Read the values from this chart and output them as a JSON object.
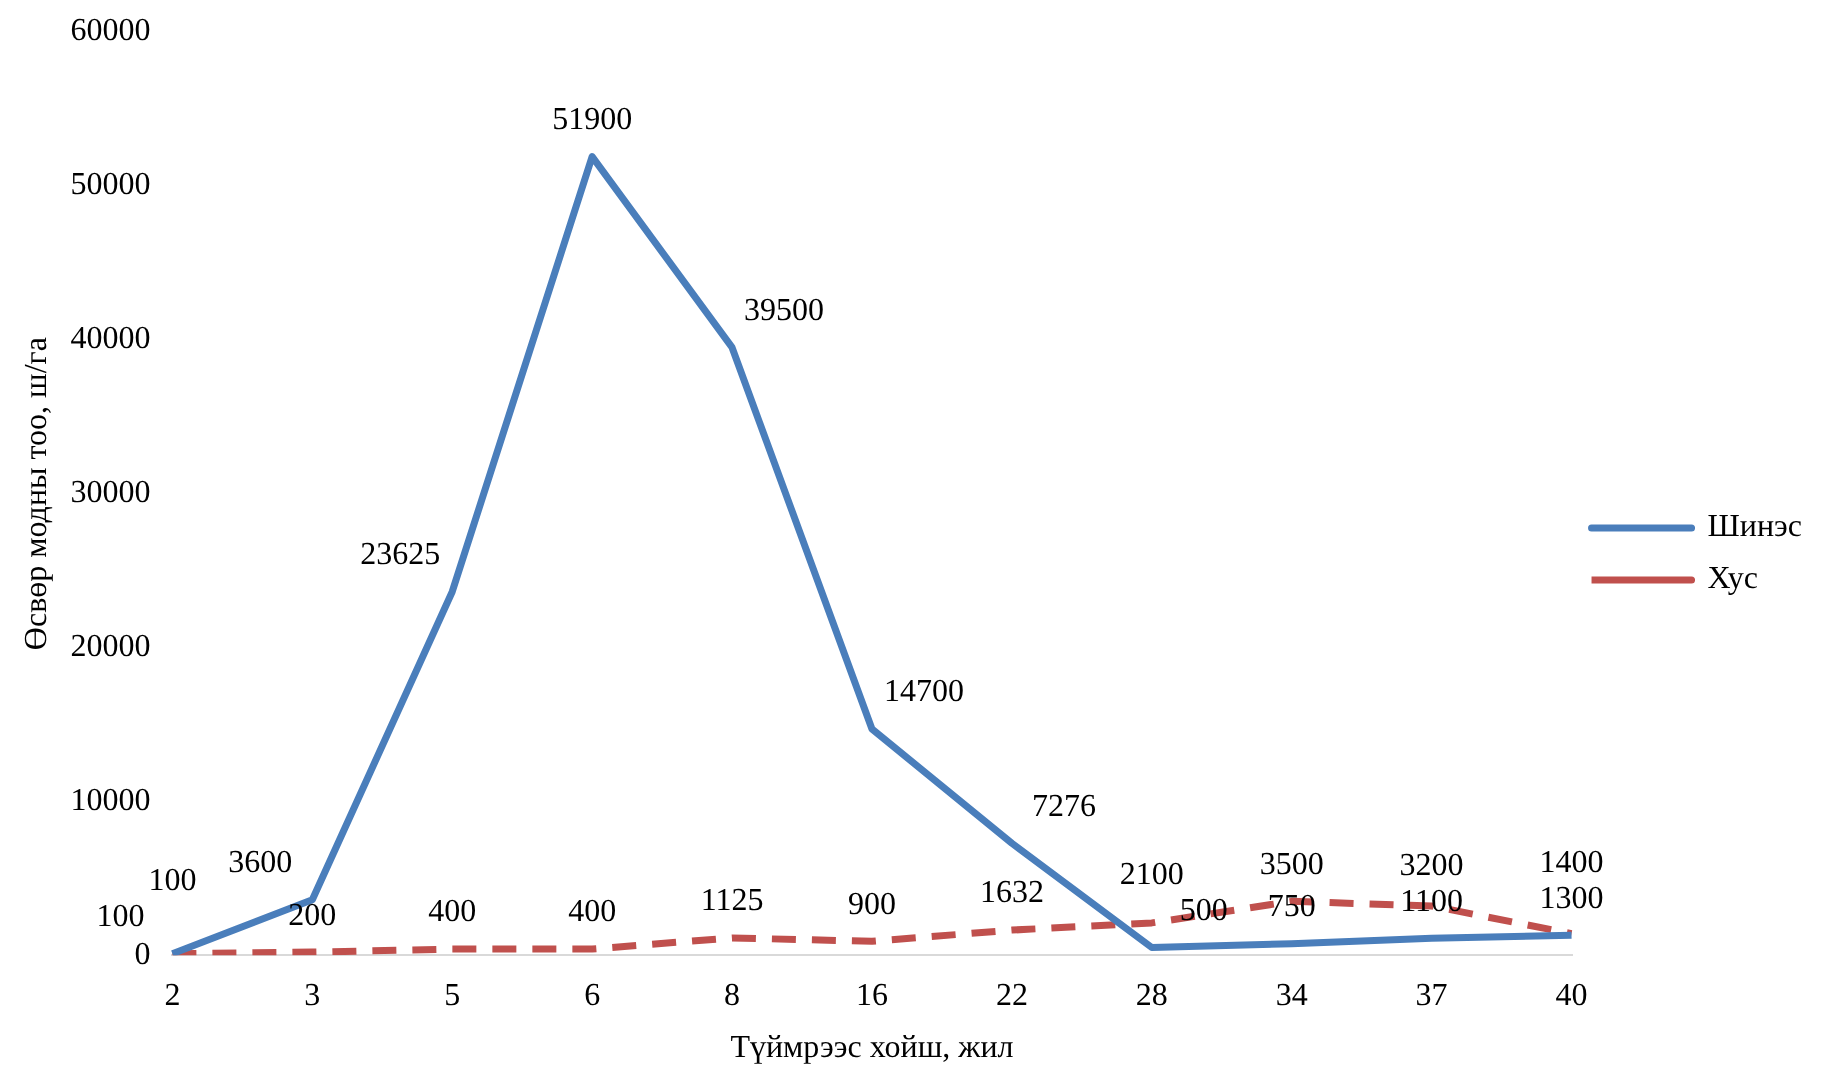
{
  "chart_data": {
    "type": "line",
    "xlabel": "Түймрээс хойш, жил",
    "ylabel": "Өсвөр модны тоо, ш/га",
    "categories": [
      "2",
      "3",
      "5",
      "6",
      "8",
      "16",
      "22",
      "28",
      "34",
      "37",
      "40"
    ],
    "series": [
      {
        "name": "Шинэс",
        "color": "#4a7ebb",
        "line_style": "solid",
        "values": [
          100,
          3600,
          23625,
          51900,
          39500,
          14700,
          7276,
          500,
          750,
          1100,
          1300
        ]
      },
      {
        "name": "Хус",
        "color": "#c0504d",
        "line_style": "dashed",
        "values": [
          100,
          200,
          400,
          400,
          1125,
          900,
          1632,
          2100,
          3500,
          3200,
          1400
        ]
      }
    ],
    "ylim": [
      0,
      60000
    ],
    "yticks": [
      0,
      10000,
      20000,
      30000,
      40000,
      50000,
      60000
    ],
    "grid": false,
    "legend": "right",
    "marker": "none",
    "data_labels": true
  }
}
